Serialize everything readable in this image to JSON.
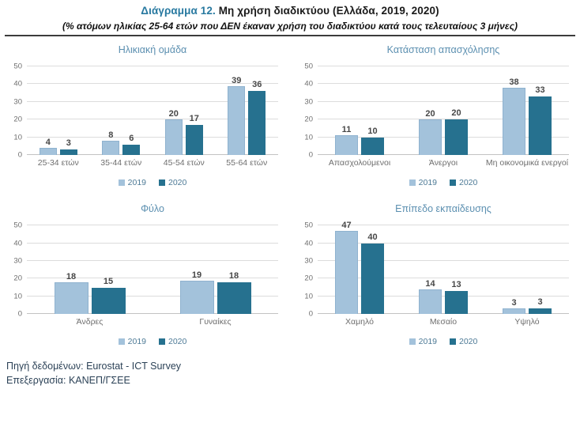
{
  "header": {
    "title_prefix": "Διάγραμμα 12.",
    "title_rest": " Μη χρήση διαδικτύου (Ελλάδα, 2019, 2020)",
    "subtitle": "(% ατόμων ηλικίας 25-64 ετών που ΔΕΝ έκαναν χρήση του διαδικτύου κατά τους τελευταίους 3 μήνες)"
  },
  "colors": {
    "series_2019": "#a3c2db",
    "series_2020": "#26718f",
    "chart_title": "#5b8fb0",
    "title_accent": "#2879a0",
    "gridline": "#dcdcdc",
    "axis_label": "#6e6e6e",
    "value_label": "#474747",
    "legend_text": "#4d7a96"
  },
  "legend": {
    "items": [
      {
        "label": "2019",
        "color": "#a3c2db"
      },
      {
        "label": "2020",
        "color": "#26718f"
      }
    ]
  },
  "chart_data": [
    {
      "type": "bar",
      "title": "Ηλικιακή ομάδα",
      "categories": [
        "25-34 ετών",
        "35-44 ετών",
        "45-54 ετών",
        "55-64 ετών"
      ],
      "series": [
        {
          "name": "2019",
          "values": [
            4,
            8,
            20,
            39
          ]
        },
        {
          "name": "2020",
          "values": [
            3,
            6,
            17,
            36
          ]
        }
      ],
      "ylim": [
        0,
        50
      ],
      "yticks": [
        0,
        10,
        20,
        30,
        40,
        50
      ],
      "grid": true,
      "legend_position": "bottom"
    },
    {
      "type": "bar",
      "title": "Κατάσταση απασχόλησης",
      "categories": [
        "Απασχολούμενοι",
        "Άνεργοι",
        "Μη οικονομικά ενεργοί"
      ],
      "series": [
        {
          "name": "2019",
          "values": [
            11,
            20,
            38
          ]
        },
        {
          "name": "2020",
          "values": [
            10,
            20,
            33
          ]
        }
      ],
      "ylim": [
        0,
        50
      ],
      "yticks": [
        0,
        10,
        20,
        30,
        40,
        50
      ],
      "grid": true,
      "legend_position": "bottom"
    },
    {
      "type": "bar",
      "title": "Φύλο",
      "categories": [
        "Άνδρες",
        "Γυναίκες"
      ],
      "series": [
        {
          "name": "2019",
          "values": [
            18,
            19
          ]
        },
        {
          "name": "2020",
          "values": [
            15,
            18
          ]
        }
      ],
      "ylim": [
        0,
        50
      ],
      "yticks": [
        0,
        10,
        20,
        30,
        40,
        50
      ],
      "grid": true,
      "legend_position": "bottom"
    },
    {
      "type": "bar",
      "title": "Επίπεδο εκπαίδευσης",
      "categories": [
        "Χαμηλό",
        "Μεσαίο",
        "Υψηλό"
      ],
      "series": [
        {
          "name": "2019",
          "values": [
            47,
            14,
            3
          ]
        },
        {
          "name": "2020",
          "values": [
            40,
            13,
            3
          ]
        }
      ],
      "ylim": [
        0,
        50
      ],
      "yticks": [
        0,
        10,
        20,
        30,
        40,
        50
      ],
      "grid": true,
      "legend_position": "bottom"
    }
  ],
  "footer": {
    "source": "Πηγή δεδομένων: Eurostat - ICT Survey",
    "processing": "Επεξεργασία: ΚΑΝΕΠ/ΓΣΕΕ"
  }
}
